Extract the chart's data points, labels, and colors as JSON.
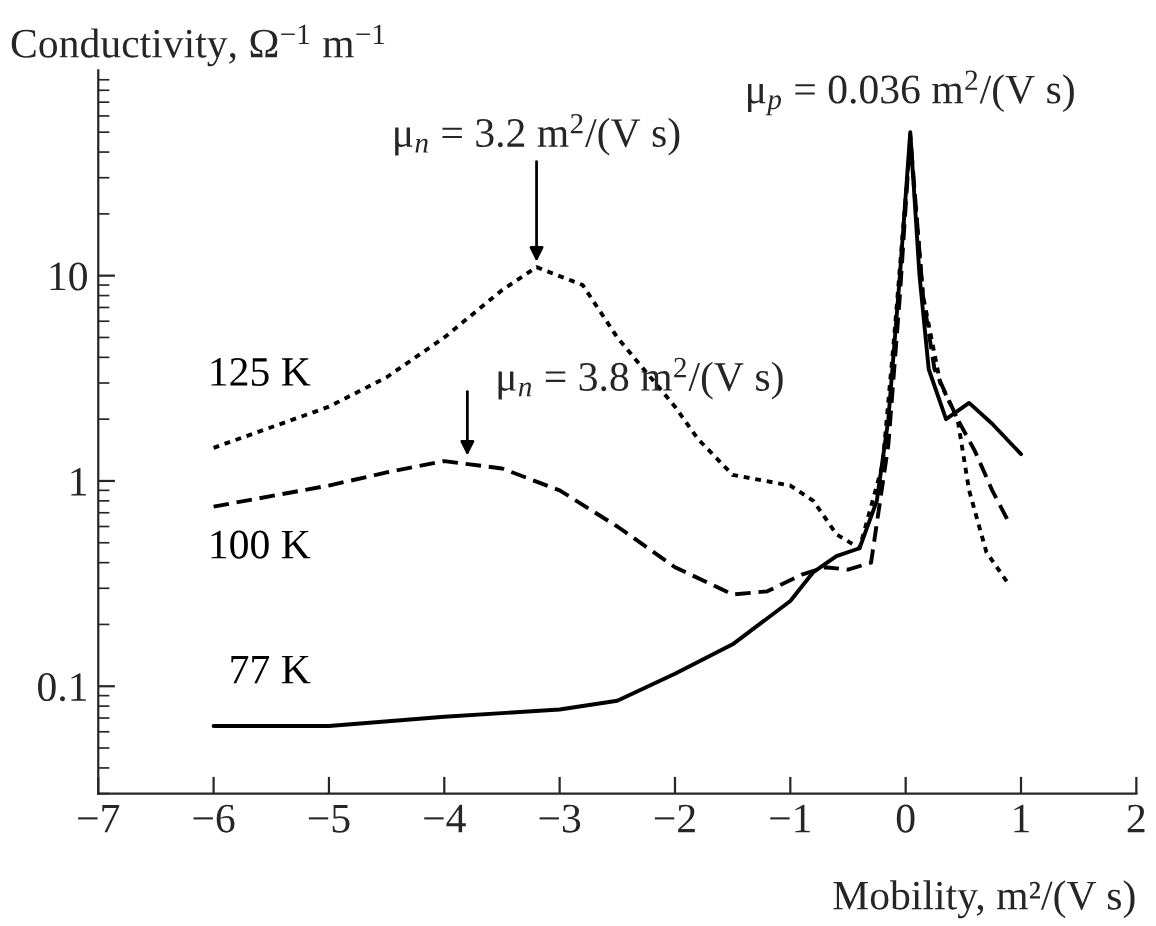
{
  "chart_data": {
    "type": "line",
    "xlabel": "Mobility, m²/(V s)",
    "ylabel": "Conductivity, Ω$^{−1}$ m$^{−1}$",
    "log": "y",
    "xlim": [
      -7,
      2
    ],
    "xticks": [
      {
        "value": -7,
        "label": "−7"
      },
      {
        "value": -6,
        "label": "−6"
      },
      {
        "value": -5,
        "label": "−5"
      },
      {
        "value": -4,
        "label": "−4"
      },
      {
        "value": -3,
        "label": "−3"
      },
      {
        "value": -2,
        "label": "−2"
      },
      {
        "value": -1,
        "label": "−1"
      },
      0,
      1,
      2
    ],
    "ylim": [
      0.03,
      100
    ],
    "yticks": [
      0.1,
      1,
      10
    ],
    "grid": false,
    "legend": false,
    "series": [
      {
        "name": "125 K",
        "color": "#000000",
        "line_style": "dotted",
        "x": [
          -6,
          -5,
          -4.5,
          -4,
          -3.5,
          -3.2,
          -2.8,
          -2.5,
          -2,
          -1.8,
          -1.5,
          -1,
          -0.8,
          -0.6,
          -0.4,
          -0.2,
          -0.1,
          0.04,
          0.15,
          0.3,
          0.45,
          0.55,
          0.7,
          0.9
        ],
        "values": [
          1.45,
          2.3,
          3.2,
          5,
          8.5,
          11,
          9,
          5,
          2.3,
          1.6,
          1.07,
          0.95,
          0.8,
          0.55,
          0.47,
          1.2,
          5,
          45,
          8,
          3,
          2,
          0.9,
          0.45,
          0.31
        ]
      },
      {
        "name": "100 K",
        "color": "#000000",
        "line_style": "dashed",
        "x": [
          -6,
          -5,
          -4.5,
          -4,
          -3.5,
          -3,
          -2.5,
          -2,
          -1.5,
          -1.2,
          -0.9,
          -0.7,
          -0.5,
          -0.3,
          -0.15,
          -0.05,
          0.04,
          0.15,
          0.25,
          0.45,
          0.6,
          0.75,
          0.9
        ],
        "values": [
          0.75,
          0.95,
          1.1,
          1.25,
          1.15,
          0.9,
          0.6,
          0.38,
          0.28,
          0.29,
          0.35,
          0.38,
          0.37,
          0.4,
          1.5,
          8,
          48,
          8,
          3.5,
          2,
          1.4,
          0.9,
          0.62
        ]
      },
      {
        "name": "77 K",
        "color": "#000000",
        "line_style": "solid",
        "x": [
          -6,
          -5,
          -4,
          -3,
          -2.5,
          -2,
          -1.5,
          -1,
          -0.8,
          -0.6,
          -0.4,
          -0.25,
          -0.15,
          -0.05,
          0.04,
          0.12,
          0.2,
          0.35,
          0.55,
          0.75,
          1
        ],
        "values": [
          0.064,
          0.064,
          0.071,
          0.077,
          0.085,
          0.115,
          0.16,
          0.26,
          0.36,
          0.43,
          0.47,
          0.8,
          2,
          10,
          50,
          10,
          3.5,
          2,
          2.4,
          1.9,
          1.35
        ]
      }
    ],
    "annotations": [
      {
        "text": "μ$_{n}$ = 3.2 m$^{2}$/(V s)",
        "x": -3.2,
        "y": 11
      },
      {
        "text": "μ$_{n}$ = 3.8 m$^{2}$/(V s)",
        "x": -3.8,
        "y": 1.25
      },
      {
        "text": "μ$_{p}$ = 0.036 m$^{2}$/(V s)",
        "x": 0.04,
        "y": 50
      }
    ]
  }
}
